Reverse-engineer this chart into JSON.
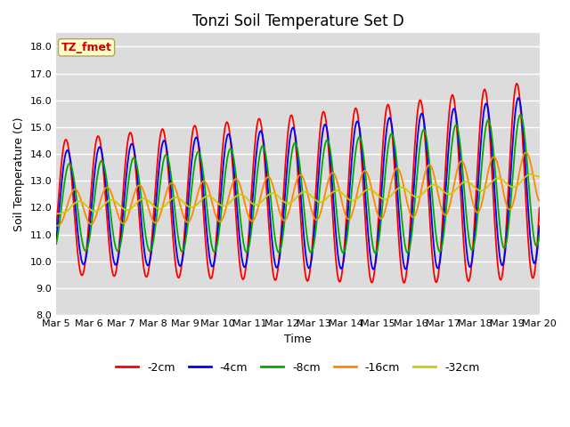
{
  "title": "Tonzi Soil Temperature Set D",
  "xlabel": "Time",
  "ylabel": "Soil Temperature (C)",
  "ylim": [
    8.0,
    18.5
  ],
  "yticks": [
    8.0,
    9.0,
    10.0,
    11.0,
    12.0,
    13.0,
    14.0,
    15.0,
    16.0,
    17.0,
    18.0
  ],
  "x_labels": [
    "Mar 5",
    "Mar 6",
    "Mar 7",
    "Mar 8",
    "Mar 9",
    "Mar 10",
    "Mar 11",
    "Mar 12",
    "Mar 13",
    "Mar 14",
    "Mar 15",
    "Mar 16",
    "Mar 17",
    "Mar 18",
    "Mar 19",
    "Mar 20"
  ],
  "legend_labels": [
    "-2cm",
    "-4cm",
    "-8cm",
    "-16cm",
    "-32cm"
  ],
  "legend_colors": [
    "#ff0000",
    "#0000ff",
    "#00aa00",
    "#ff8800",
    "#cccc00"
  ],
  "annotation_text": "TZ_fmet",
  "annotation_color": "#cc0000",
  "annotation_bg": "#ffffcc",
  "background_color": "#dcdcdc",
  "grid_color": "#ffffff",
  "title_fontsize": 12,
  "axis_fontsize": 9,
  "tick_fontsize": 8,
  "legend_fontsize": 9
}
